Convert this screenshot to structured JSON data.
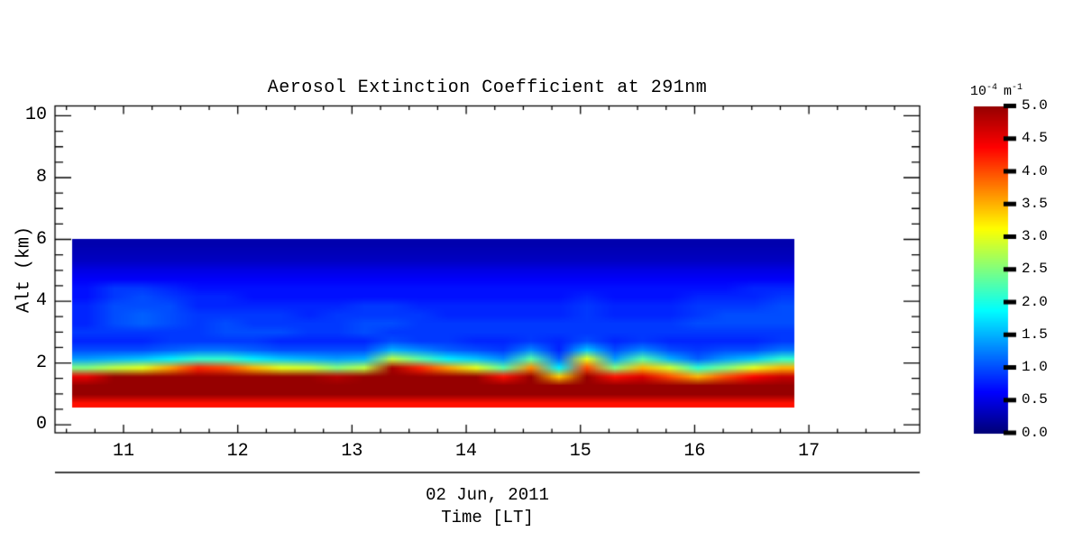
{
  "title": "Aerosol Extinction Coefficient at 291nm",
  "x_axis": {
    "date": "02 Jun, 2011",
    "label": "Time [LT]",
    "tick_labels": [
      "11",
      "12",
      "13",
      "14",
      "15",
      "16",
      "17"
    ]
  },
  "y_axis": {
    "label": "Alt (km)",
    "tick_labels": [
      "0",
      "2",
      "4",
      "6",
      "8",
      "10"
    ]
  },
  "axes": {
    "x_range": [
      10.4,
      17.97
    ],
    "y_range": [
      -0.26,
      10.32
    ],
    "x_major_ticks": [
      11,
      12,
      13,
      14,
      15,
      16,
      17
    ],
    "x_minor_step": 0.25,
    "y_major_ticks": [
      0,
      2,
      4,
      6,
      8,
      10
    ],
    "y_minor_step": 0.5
  },
  "colorbar": {
    "unit": {
      "base1": "10",
      "exp1": "-4",
      "base2": "m",
      "exp2": "-1"
    },
    "min": 0,
    "max": 5,
    "ticks": [
      0,
      0.5,
      1,
      1.5,
      2,
      2.5,
      3,
      3.5,
      4,
      4.5,
      5
    ],
    "tick_labels": [
      "0.0",
      "0.5",
      "1.0",
      "1.5",
      "2.0",
      "2.5",
      "3.0",
      "3.5",
      "4.0",
      "4.5",
      "5.0"
    ],
    "colormap_stops": [
      {
        "t": 0.0,
        "color": "#000078"
      },
      {
        "t": 0.125,
        "color": "#0000FF"
      },
      {
        "t": 0.375,
        "color": "#00FFFF"
      },
      {
        "t": 0.625,
        "color": "#FFFF00"
      },
      {
        "t": 0.875,
        "color": "#FF0000"
      },
      {
        "t": 1.0,
        "color": "#960000"
      }
    ]
  },
  "chart_data": {
    "type": "heatmap",
    "title": "Aerosol Extinction Coefficient at 291nm",
    "xlabel": "Time [LT]",
    "ylabel": "Alt (km)",
    "units": "1e-4 m^-1",
    "colormap": "jet",
    "value_range": [
      0,
      5
    ],
    "legend_position": "right-colorbar",
    "grid": false,
    "x_hours": [
      10.55,
      10.8,
      11.05,
      11.3,
      11.55,
      11.8,
      12.05,
      12.3,
      12.55,
      12.8,
      13.05,
      13.3,
      13.55,
      13.8,
      14.05,
      14.3,
      14.55,
      14.8,
      15.05,
      15.3,
      15.55,
      15.8,
      16.05,
      16.3,
      16.55,
      16.8
    ],
    "alt_km": [
      0.6,
      0.9,
      1.2,
      1.5,
      1.8,
      2.1,
      2.4,
      2.7,
      3.0,
      3.3,
      3.6,
      3.9,
      4.2,
      4.5,
      4.8,
      5.1,
      5.4,
      5.7,
      6.0
    ],
    "values_by_column_bottom_to_top": [
      [
        4.3,
        5.3,
        5.3,
        4.5,
        2.5,
        1.4,
        1.0,
        0.8,
        0.9,
        0.8,
        0.8,
        0.8,
        0.7,
        0.7,
        0.6,
        0.5,
        0.35,
        0.3,
        0.25
      ],
      [
        4.3,
        5.3,
        5.3,
        5.3,
        2.8,
        1.5,
        1.0,
        0.8,
        0.9,
        1.0,
        1.0,
        1.0,
        0.9,
        0.9,
        0.6,
        0.5,
        0.35,
        0.3,
        0.25
      ],
      [
        4.3,
        5.3,
        5.3,
        5.3,
        3.0,
        1.6,
        1.0,
        0.8,
        0.9,
        1.1,
        1.1,
        1.0,
        1.0,
        0.9,
        0.6,
        0.5,
        0.35,
        0.3,
        0.25
      ],
      [
        4.3,
        5.3,
        5.3,
        5.3,
        3.6,
        1.8,
        1.1,
        0.9,
        0.9,
        1.0,
        1.0,
        1.0,
        0.9,
        0.8,
        0.6,
        0.5,
        0.35,
        0.3,
        0.25
      ],
      [
        4.3,
        5.3,
        5.3,
        5.3,
        4.2,
        2.1,
        1.2,
        0.9,
        0.9,
        0.9,
        0.9,
        0.8,
        0.8,
        0.7,
        0.6,
        0.5,
        0.35,
        0.3,
        0.25
      ],
      [
        4.3,
        5.3,
        5.3,
        5.3,
        4.0,
        2.1,
        1.2,
        0.9,
        1.0,
        1.0,
        0.9,
        0.8,
        0.8,
        0.7,
        0.6,
        0.5,
        0.35,
        0.3,
        0.25
      ],
      [
        4.3,
        5.3,
        5.3,
        5.3,
        3.5,
        1.8,
        1.1,
        0.9,
        1.0,
        0.9,
        0.9,
        0.8,
        0.7,
        0.7,
        0.6,
        0.5,
        0.35,
        0.3,
        0.25
      ],
      [
        4.3,
        5.3,
        5.3,
        5.3,
        3.0,
        1.6,
        1.0,
        0.8,
        1.0,
        0.9,
        0.9,
        0.8,
        0.7,
        0.7,
        0.6,
        0.5,
        0.35,
        0.3,
        0.25
      ],
      [
        4.3,
        5.3,
        5.3,
        5.3,
        2.9,
        1.5,
        1.0,
        0.8,
        0.9,
        0.9,
        0.8,
        0.8,
        0.7,
        0.7,
        0.6,
        0.5,
        0.35,
        0.3,
        0.25
      ],
      [
        4.3,
        5.3,
        5.3,
        4.8,
        2.5,
        1.4,
        1.0,
        0.8,
        0.9,
        0.9,
        0.9,
        0.8,
        0.7,
        0.7,
        0.6,
        0.5,
        0.35,
        0.3,
        0.25
      ],
      [
        4.3,
        5.3,
        5.3,
        5.2,
        2.8,
        1.5,
        1.0,
        0.8,
        1.0,
        1.0,
        0.9,
        0.9,
        0.7,
        0.7,
        0.6,
        0.5,
        0.35,
        0.3,
        0.25
      ],
      [
        4.3,
        5.3,
        5.3,
        5.3,
        4.9,
        2.8,
        1.5,
        1.0,
        0.9,
        1.0,
        0.9,
        0.9,
        0.7,
        0.7,
        0.6,
        0.5,
        0.35,
        0.3,
        0.25
      ],
      [
        4.3,
        5.3,
        5.3,
        5.3,
        4.2,
        2.3,
        1.3,
        0.9,
        0.9,
        0.9,
        0.9,
        0.8,
        0.7,
        0.7,
        0.6,
        0.5,
        0.35,
        0.3,
        0.25
      ],
      [
        4.3,
        5.3,
        5.3,
        5.3,
        3.6,
        1.8,
        1.1,
        0.9,
        0.9,
        0.9,
        0.8,
        0.8,
        0.7,
        0.7,
        0.6,
        0.5,
        0.35,
        0.3,
        0.25
      ],
      [
        4.3,
        5.3,
        5.3,
        5.3,
        3.0,
        1.6,
        1.0,
        0.8,
        0.9,
        0.9,
        0.8,
        0.8,
        0.7,
        0.7,
        0.6,
        0.5,
        0.35,
        0.3,
        0.25
      ],
      [
        4.3,
        5.3,
        5.3,
        4.3,
        2.3,
        1.3,
        0.9,
        0.8,
        0.9,
        0.9,
        0.8,
        0.8,
        0.7,
        0.7,
        0.6,
        0.5,
        0.35,
        0.3,
        0.25
      ],
      [
        4.3,
        5.3,
        5.3,
        5.1,
        3.7,
        2.3,
        1.3,
        0.9,
        0.9,
        0.9,
        0.8,
        0.8,
        0.7,
        0.7,
        0.6,
        0.5,
        0.35,
        0.3,
        0.25
      ],
      [
        4.3,
        5.3,
        5.3,
        3.4,
        1.8,
        1.1,
        0.8,
        0.8,
        0.9,
        0.9,
        0.8,
        0.8,
        0.7,
        0.7,
        0.6,
        0.5,
        0.35,
        0.3,
        0.25
      ],
      [
        4.3,
        5.3,
        5.3,
        5.0,
        4.0,
        3.0,
        1.6,
        1.0,
        0.9,
        0.9,
        0.9,
        0.9,
        0.8,
        0.7,
        0.6,
        0.5,
        0.35,
        0.3,
        0.25
      ],
      [
        4.3,
        5.3,
        5.3,
        4.3,
        2.5,
        1.4,
        1.0,
        0.8,
        0.9,
        0.9,
        0.8,
        0.8,
        0.7,
        0.7,
        0.6,
        0.5,
        0.35,
        0.3,
        0.25
      ],
      [
        4.3,
        5.3,
        5.3,
        4.6,
        3.5,
        2.3,
        1.3,
        0.9,
        0.9,
        0.9,
        0.8,
        0.8,
        0.7,
        0.7,
        0.6,
        0.5,
        0.35,
        0.3,
        0.25
      ],
      [
        4.3,
        5.3,
        5.3,
        4.0,
        2.9,
        1.5,
        1.0,
        0.8,
        0.9,
        0.9,
        0.8,
        0.8,
        0.7,
        0.7,
        0.6,
        0.5,
        0.35,
        0.3,
        0.25
      ],
      [
        4.3,
        5.3,
        5.1,
        3.5,
        2.1,
        1.1,
        0.9,
        0.8,
        0.9,
        1.0,
        0.9,
        0.9,
        0.8,
        0.7,
        0.6,
        0.5,
        0.35,
        0.3,
        0.25
      ],
      [
        4.3,
        5.3,
        5.3,
        4.0,
        2.5,
        1.4,
        1.0,
        0.8,
        0.9,
        1.0,
        1.0,
        0.9,
        0.8,
        0.7,
        0.6,
        0.5,
        0.35,
        0.3,
        0.25
      ],
      [
        4.3,
        5.3,
        5.3,
        4.4,
        3.0,
        1.6,
        1.0,
        0.8,
        0.9,
        1.0,
        1.0,
        0.9,
        0.8,
        0.8,
        0.6,
        0.5,
        0.35,
        0.3,
        0.25
      ],
      [
        4.3,
        5.3,
        5.3,
        4.7,
        3.5,
        2.1,
        1.2,
        0.9,
        0.9,
        1.0,
        1.0,
        1.0,
        0.9,
        0.8,
        0.6,
        0.5,
        0.35,
        0.3,
        0.25
      ]
    ]
  }
}
